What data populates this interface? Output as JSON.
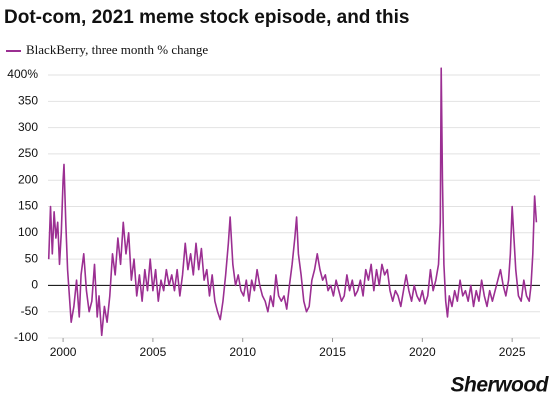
{
  "chart_data": {
    "type": "line",
    "title": "Dot-com, 2021 meme stock episode, and this",
    "brand": "Sherwood",
    "grid": true,
    "xlim": [
      1999.16,
      2026.55
    ],
    "xticks": [
      2000,
      2005,
      2010,
      2015,
      2020,
      2025
    ],
    "ylim": [
      -100,
      420
    ],
    "yticks": [
      -100,
      -50,
      0,
      50,
      100,
      150,
      200,
      250,
      300,
      350,
      {
        "value": 400,
        "label": "400%"
      }
    ],
    "x": [
      1999.2,
      1999.3,
      1999.4,
      1999.5,
      1999.6,
      1999.7,
      1999.8,
      1999.9,
      2000.0,
      2000.05,
      2000.15,
      2000.25,
      2000.35,
      2000.45,
      2000.6,
      2000.75,
      2000.9,
      2001.0,
      2001.15,
      2001.3,
      2001.45,
      2001.6,
      2001.75,
      2001.9,
      2002.0,
      2002.15,
      2002.3,
      2002.45,
      2002.6,
      2002.75,
      2002.9,
      2003.05,
      2003.2,
      2003.35,
      2003.5,
      2003.65,
      2003.8,
      2003.95,
      2004.1,
      2004.25,
      2004.4,
      2004.55,
      2004.7,
      2004.85,
      2005.0,
      2005.15,
      2005.3,
      2005.45,
      2005.6,
      2005.75,
      2005.9,
      2006.05,
      2006.2,
      2006.35,
      2006.5,
      2006.65,
      2006.8,
      2006.95,
      2007.1,
      2007.25,
      2007.4,
      2007.55,
      2007.7,
      2007.85,
      2008.0,
      2008.15,
      2008.3,
      2008.45,
      2008.6,
      2008.75,
      2008.9,
      2009.05,
      2009.2,
      2009.3,
      2009.45,
      2009.6,
      2009.75,
      2009.9,
      2010.05,
      2010.2,
      2010.35,
      2010.5,
      2010.65,
      2010.8,
      2010.95,
      2011.1,
      2011.25,
      2011.4,
      2011.55,
      2011.7,
      2011.85,
      2012.0,
      2012.15,
      2012.3,
      2012.45,
      2012.6,
      2012.75,
      2012.9,
      2013.0,
      2013.1,
      2013.25,
      2013.4,
      2013.55,
      2013.7,
      2013.85,
      2014.0,
      2014.15,
      2014.3,
      2014.45,
      2014.6,
      2014.75,
      2014.9,
      2015.05,
      2015.2,
      2015.35,
      2015.5,
      2015.65,
      2015.8,
      2015.95,
      2016.1,
      2016.25,
      2016.4,
      2016.55,
      2016.7,
      2016.85,
      2017.0,
      2017.15,
      2017.3,
      2017.45,
      2017.6,
      2017.75,
      2017.9,
      2018.05,
      2018.2,
      2018.35,
      2018.5,
      2018.65,
      2018.8,
      2018.95,
      2019.1,
      2019.25,
      2019.4,
      2019.55,
      2019.7,
      2019.85,
      2020.0,
      2020.15,
      2020.3,
      2020.45,
      2020.6,
      2020.75,
      2020.9,
      2021.0,
      2021.05,
      2021.12,
      2021.2,
      2021.3,
      2021.4,
      2021.5,
      2021.65,
      2021.8,
      2021.95,
      2022.1,
      2022.25,
      2022.4,
      2022.55,
      2022.7,
      2022.85,
      2023.0,
      2023.15,
      2023.3,
      2023.45,
      2023.6,
      2023.75,
      2023.9,
      2024.05,
      2024.2,
      2024.35,
      2024.5,
      2024.65,
      2024.8,
      2024.9,
      2025.0,
      2025.1,
      2025.2,
      2025.35,
      2025.5,
      2025.65,
      2025.8,
      2025.95,
      2026.05,
      2026.15,
      2026.25,
      2026.35
    ],
    "series": [
      {
        "name": "BlackBerry, three month % change",
        "color": "#9b2f92",
        "values": [
          50,
          150,
          60,
          140,
          90,
          120,
          40,
          100,
          200,
          230,
          120,
          30,
          -20,
          -70,
          -40,
          10,
          -60,
          20,
          60,
          -10,
          -50,
          -30,
          40,
          -60,
          -20,
          -95,
          -40,
          -70,
          -20,
          60,
          20,
          90,
          40,
          120,
          60,
          100,
          10,
          50,
          -20,
          20,
          -30,
          30,
          -10,
          50,
          -10,
          30,
          -30,
          10,
          -10,
          30,
          0,
          20,
          -10,
          30,
          -20,
          20,
          80,
          30,
          60,
          20,
          80,
          30,
          70,
          10,
          30,
          -20,
          20,
          -30,
          -50,
          -65,
          -30,
          20,
          80,
          130,
          40,
          0,
          20,
          -10,
          -20,
          10,
          -30,
          10,
          -10,
          30,
          0,
          -20,
          -30,
          -50,
          -20,
          -40,
          20,
          -20,
          -30,
          -20,
          -45,
          0,
          40,
          90,
          130,
          60,
          20,
          -30,
          -50,
          -40,
          10,
          30,
          60,
          30,
          10,
          20,
          -10,
          0,
          -20,
          10,
          -10,
          -30,
          -20,
          20,
          -10,
          10,
          -20,
          -10,
          10,
          -20,
          30,
          10,
          40,
          -10,
          30,
          0,
          40,
          20,
          30,
          -10,
          -30,
          -10,
          -20,
          -40,
          -10,
          20,
          -10,
          -30,
          0,
          -20,
          -30,
          -10,
          -35,
          -20,
          30,
          -10,
          10,
          40,
          120,
          413,
          200,
          40,
          -30,
          -60,
          -20,
          -40,
          -10,
          -30,
          10,
          -20,
          -10,
          -30,
          0,
          -40,
          -10,
          -30,
          10,
          -20,
          -40,
          -10,
          -30,
          -10,
          10,
          30,
          0,
          -20,
          10,
          60,
          150,
          90,
          30,
          -20,
          -30,
          10,
          -20,
          -30,
          0,
          60,
          170,
          120
        ]
      }
    ]
  }
}
